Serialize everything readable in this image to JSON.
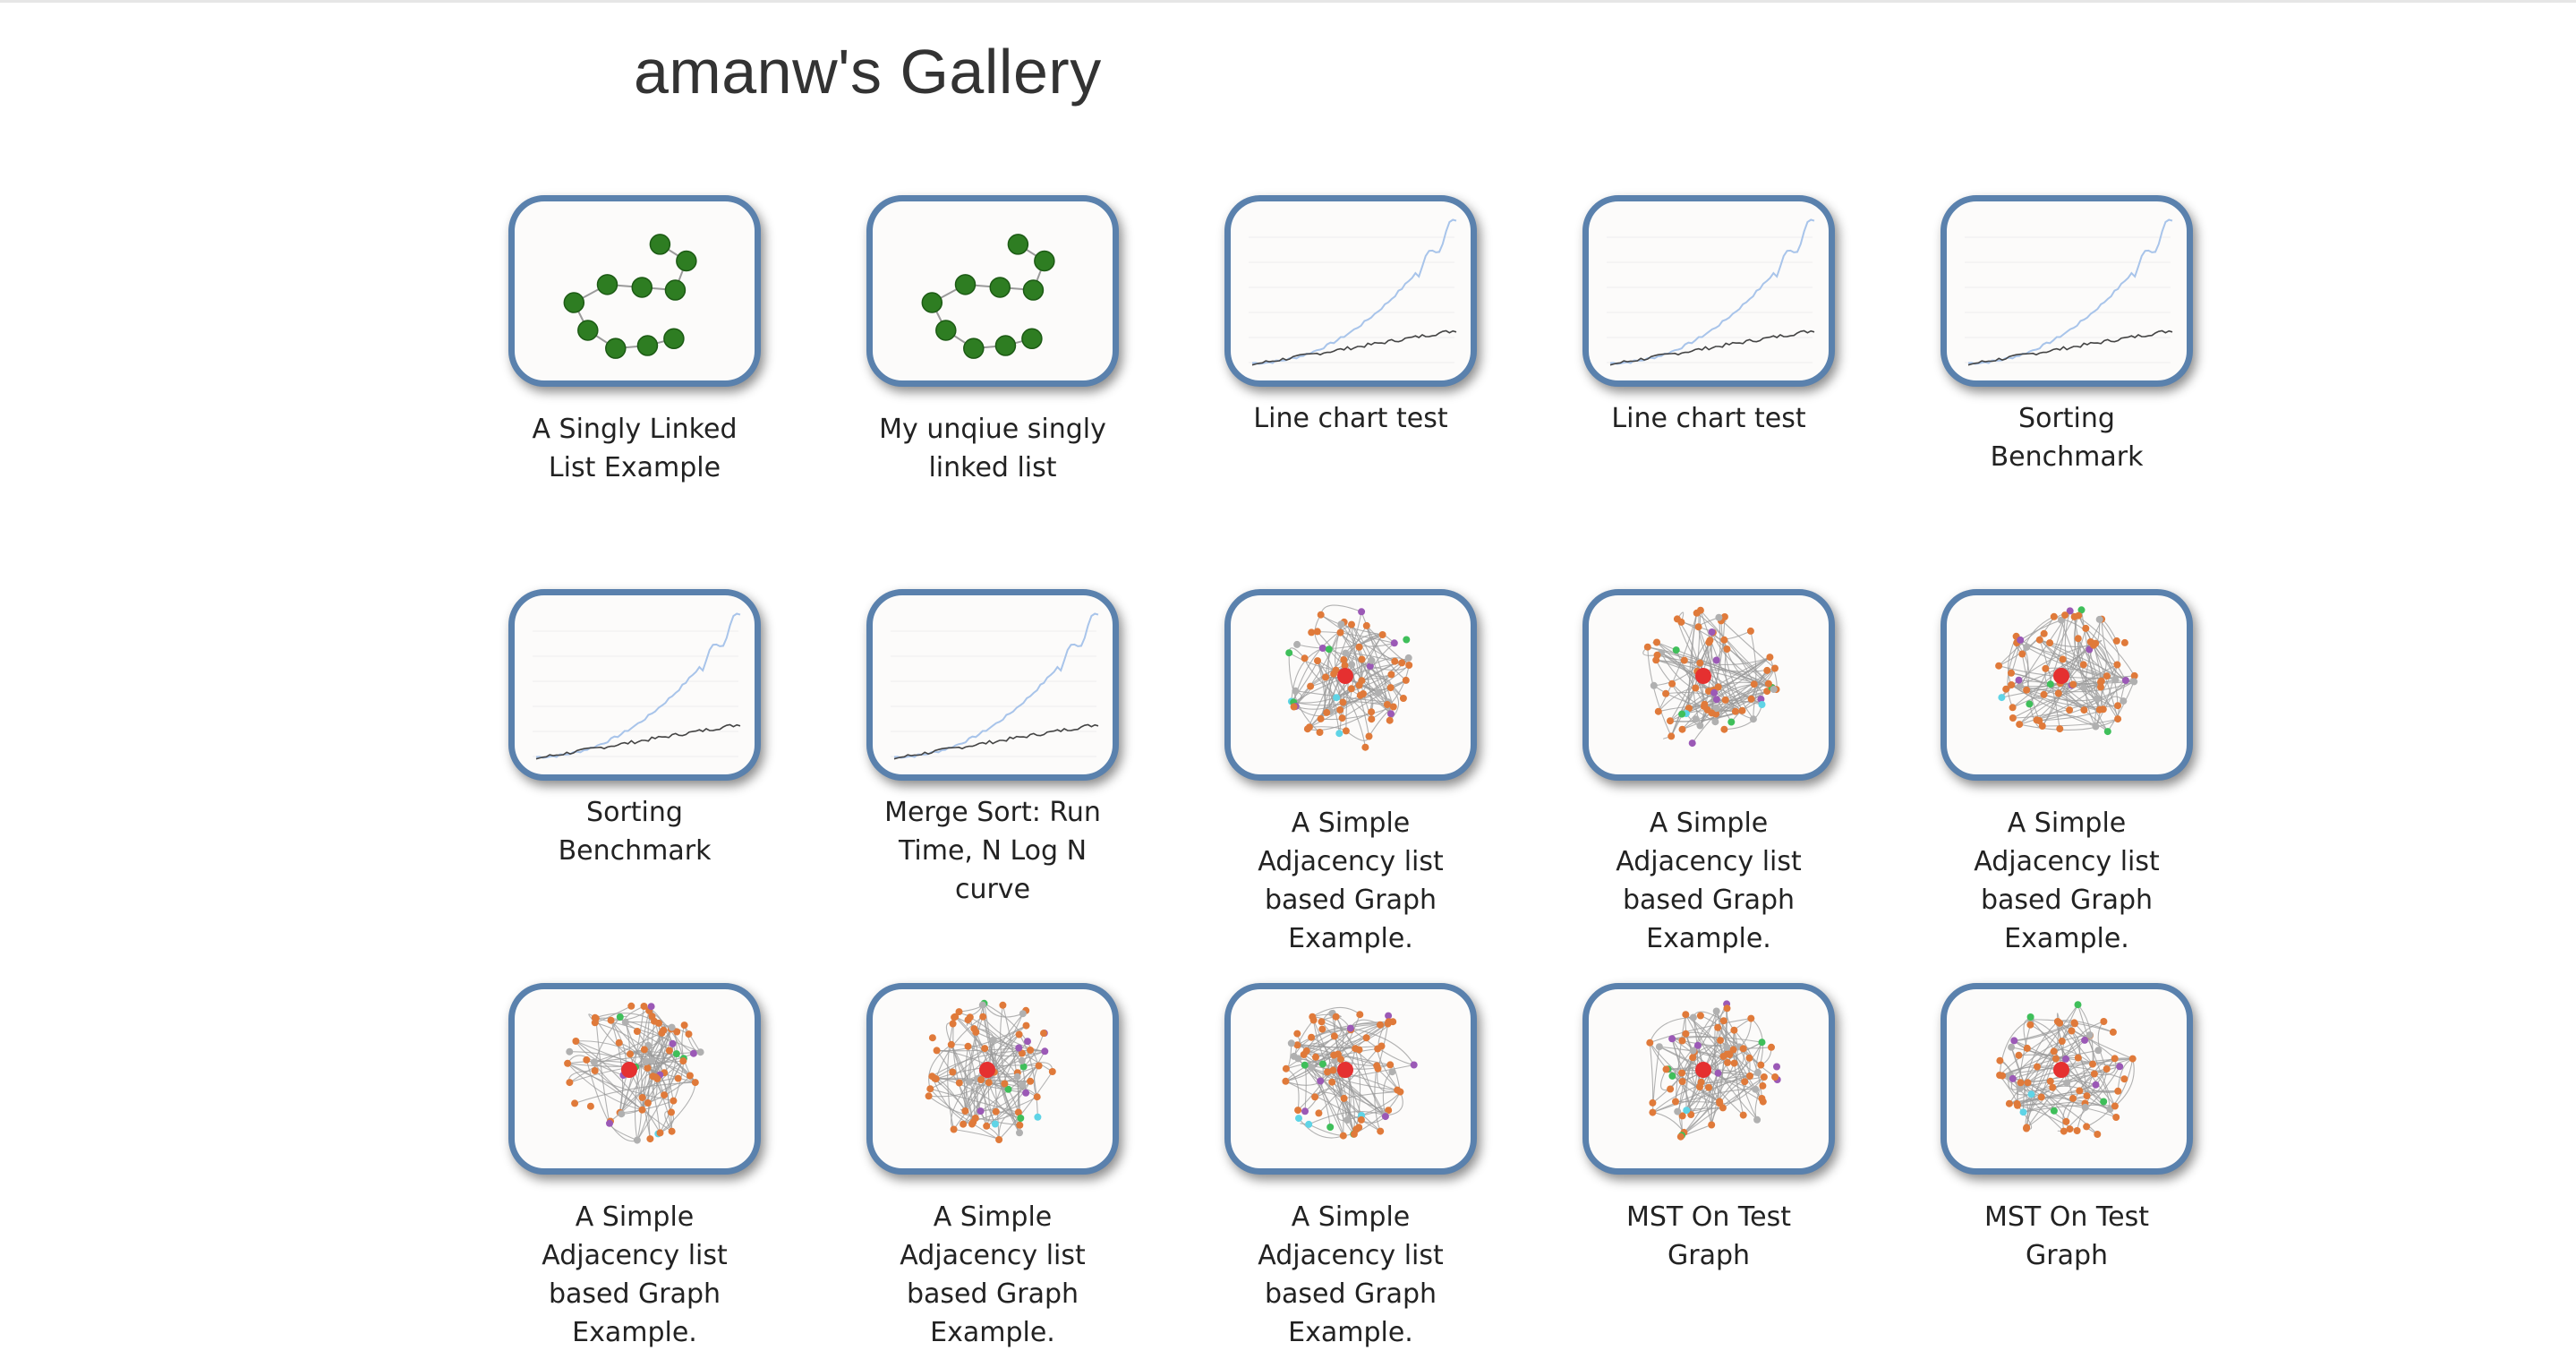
{
  "page": {
    "title": "amanw's Gallery"
  },
  "colors": {
    "thumb_border": "#5a81ad",
    "node_green": "#2e7d22",
    "node_orange": "#e07a3a",
    "node_red": "#e53030",
    "node_cyan": "#5fd4e6",
    "line_blue": "#a8c4ea",
    "line_dark": "#444444"
  },
  "gallery": {
    "items": [
      {
        "caption": "A Singly Linked List Example",
        "thumb": "linked-list"
      },
      {
        "caption": "My unqiue singly linked list",
        "thumb": "linked-list"
      },
      {
        "caption": "Line chart test",
        "thumb": "line-chart"
      },
      {
        "caption": "Line chart test",
        "thumb": "line-chart"
      },
      {
        "caption": "Sorting Benchmark",
        "thumb": "line-chart"
      },
      {
        "caption": "Sorting Benchmark",
        "thumb": "line-chart"
      },
      {
        "caption": "Merge Sort: Run Time, N Log N curve",
        "thumb": "line-chart"
      },
      {
        "caption": "A Simple Adjacency list based Graph Example.",
        "thumb": "graph"
      },
      {
        "caption": "A Simple Adjacency list based Graph Example.",
        "thumb": "graph"
      },
      {
        "caption": "A Simple Adjacency list based Graph Example.",
        "thumb": "graph"
      },
      {
        "caption": "A Simple Adjacency list based Graph Example.",
        "thumb": "graph"
      },
      {
        "caption": "A Simple Adjacency list based Graph Example.",
        "thumb": "graph"
      },
      {
        "caption": "A Simple Adjacency list based Graph Example.",
        "thumb": "graph"
      },
      {
        "caption": "MST On Test Graph",
        "thumb": "graph"
      },
      {
        "caption": "MST On Test Graph",
        "thumb": "graph"
      }
    ]
  }
}
